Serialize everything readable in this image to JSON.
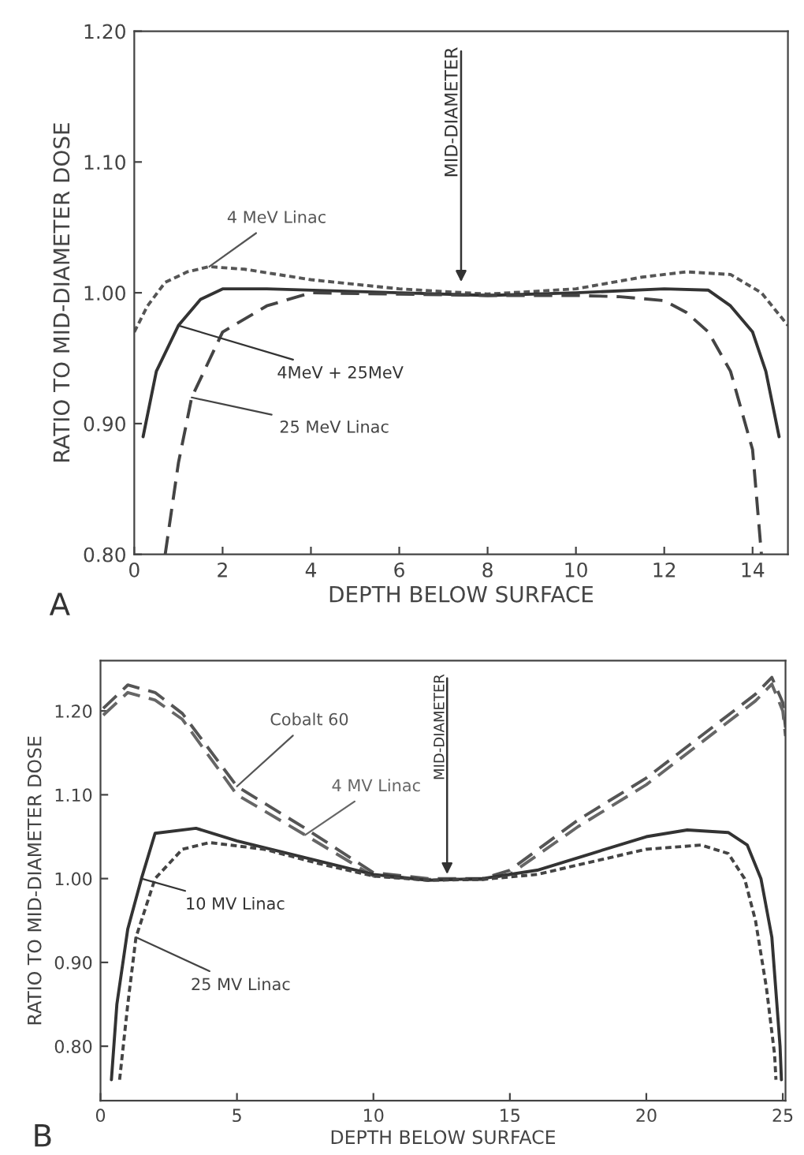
{
  "chart_data": [
    {
      "type": "line",
      "xlabel": "DEPTH BELOW SURFACE",
      "ylabel": "RATIO TO MID-DIAMETER DOSE",
      "xlim": [
        0,
        14.8
      ],
      "ylim": [
        0.8,
        1.2
      ],
      "xticks": [
        0,
        2,
        4,
        6,
        8,
        10,
        12,
        14
      ],
      "yticks": [
        {
          "value": 0.8,
          "label": "0.80"
        },
        {
          "value": 0.9,
          "label": "0.90"
        },
        {
          "value": 1.0,
          "label": "1.00"
        },
        {
          "value": 1.1,
          "label": "1.10"
        },
        {
          "value": 1.2,
          "label": "1.20"
        }
      ],
      "grid": false,
      "legend": false,
      "series": [
        {
          "name": "4 MeV Linac",
          "color": "#555555",
          "line_style": "dotted",
          "x": [
            0,
            0.3,
            0.7,
            1.2,
            1.7,
            2.5,
            4,
            6,
            8,
            10,
            11.5,
            12.5,
            13.5,
            14.2,
            14.8
          ],
          "values": [
            0.97,
            0.99,
            1.008,
            1.016,
            1.02,
            1.018,
            1.01,
            1.003,
            0.999,
            1.003,
            1.012,
            1.016,
            1.014,
            1.0,
            0.975
          ]
        },
        {
          "name": "4MeV + 25MeV",
          "color": "#333333",
          "line_style": "solid",
          "x": [
            0.2,
            0.5,
            1,
            1.5,
            2,
            3,
            6,
            8,
            10,
            12,
            13,
            13.5,
            14,
            14.3,
            14.6
          ],
          "values": [
            0.89,
            0.94,
            0.975,
            0.995,
            1.003,
            1.003,
            1.0,
            0.998,
            1.0,
            1.003,
            1.002,
            0.99,
            0.97,
            0.94,
            0.89
          ]
        },
        {
          "name": "25 MeV Linac",
          "color": "#444444",
          "line_style": "dashed",
          "x": [
            0.7,
            1,
            1.3,
            2,
            3,
            4,
            8,
            10,
            11,
            12,
            12.5,
            13,
            13.5,
            14,
            14.2
          ],
          "values": [
            0.8,
            0.87,
            0.92,
            0.97,
            0.99,
            1.0,
            0.998,
            0.998,
            0.997,
            0.994,
            0.985,
            0.97,
            0.94,
            0.88,
            0.8
          ]
        }
      ],
      "annotations": [
        {
          "text": "MID-DIAMETER",
          "x": 7.4,
          "y": 1.005
        },
        "A"
      ]
    },
    {
      "type": "line",
      "xlabel": "DEPTH BELOW SURFACE",
      "ylabel": "RATIO TO MID-DIAMETER DOSE",
      "xlim": [
        0,
        25.1
      ],
      "ylim": [
        0.735,
        1.26
      ],
      "xticks": [
        0,
        5,
        10,
        15,
        20,
        25
      ],
      "yticks": [
        {
          "value": 0.8,
          "label": "0.80"
        },
        {
          "value": 0.9,
          "label": "0.90"
        },
        {
          "value": 1.0,
          "label": "1.00"
        },
        {
          "value": 1.1,
          "label": "1.10"
        },
        {
          "value": 1.2,
          "label": "1.20"
        }
      ],
      "grid": false,
      "legend": false,
      "series": [
        {
          "name": "Cobalt 60",
          "color": "#555555",
          "line_style": "dashed",
          "x": [
            0.1,
            1,
            2,
            3,
            5,
            7.5,
            10,
            12,
            14,
            15,
            17.5,
            20,
            22,
            24,
            24.6,
            25,
            25.1
          ],
          "values": [
            1.203,
            1.231,
            1.222,
            1.197,
            1.11,
            1.06,
            1.007,
            1.0,
            1.0,
            1.01,
            1.07,
            1.12,
            1.17,
            1.22,
            1.24,
            1.21,
            1.18
          ]
        },
        {
          "name": "4 MV Linac",
          "color": "#666666",
          "line_style": "dashed",
          "x": [
            0.1,
            1,
            2,
            3,
            5,
            7.5,
            10,
            12,
            14,
            15,
            17.5,
            20,
            22,
            24,
            24.6,
            25,
            25.1
          ],
          "values": [
            1.195,
            1.222,
            1.213,
            1.19,
            1.1,
            1.052,
            1.003,
            0.999,
            0.999,
            1.005,
            1.062,
            1.112,
            1.162,
            1.212,
            1.232,
            1.2,
            1.17
          ]
        },
        {
          "name": "10 MV Linac",
          "color": "#333333",
          "line_style": "solid",
          "x": [
            0.4,
            0.6,
            1,
            1.5,
            2,
            3.5,
            5,
            7.5,
            10,
            12,
            14,
            16,
            18,
            20,
            21.5,
            23,
            23.7,
            24.2,
            24.6,
            24.9,
            24.95
          ],
          "values": [
            0.76,
            0.85,
            0.94,
            1.0,
            1.054,
            1.06,
            1.045,
            1.025,
            1.005,
            0.998,
            1.0,
            1.01,
            1.03,
            1.05,
            1.058,
            1.055,
            1.04,
            1.0,
            0.93,
            0.8,
            0.76
          ]
        },
        {
          "name": "25 MV Linac",
          "color": "#444444",
          "line_style": "dotted",
          "x": [
            0.7,
            1,
            1.3,
            2,
            3,
            4,
            6,
            8,
            10,
            12,
            14,
            16,
            18,
            20,
            22,
            23,
            23.6,
            24,
            24.4,
            24.7,
            24.75
          ],
          "values": [
            0.76,
            0.85,
            0.93,
            1.0,
            1.035,
            1.043,
            1.035,
            1.018,
            1.003,
            0.998,
            0.999,
            1.005,
            1.02,
            1.035,
            1.04,
            1.03,
            1.0,
            0.95,
            0.87,
            0.79,
            0.76
          ]
        }
      ],
      "annotations": [
        {
          "text": "MID-DIAMETER",
          "x": 12.7,
          "y": 1.0
        },
        "B"
      ]
    }
  ]
}
